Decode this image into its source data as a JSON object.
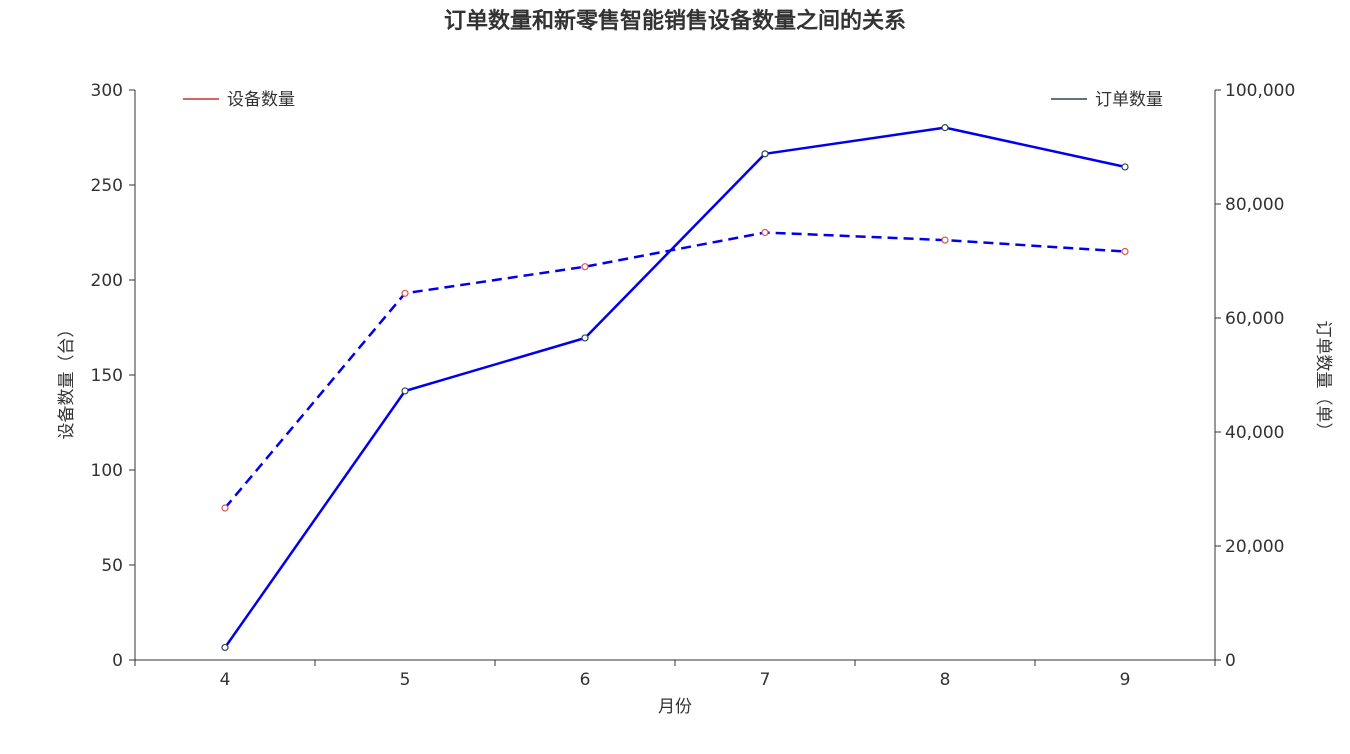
{
  "chart_data": {
    "type": "line",
    "title": "订单数量和新零售智能销售设备数量之间的关系",
    "xlabel": "月份",
    "categories": [
      "4",
      "5",
      "6",
      "7",
      "8",
      "9"
    ],
    "y_left": {
      "label": "设备数量（台）",
      "range": [
        0,
        300
      ],
      "ticks": [
        0,
        50,
        100,
        150,
        200,
        250,
        300
      ],
      "tick_labels": [
        "0",
        "50",
        "100",
        "150",
        "200",
        "250",
        "300"
      ]
    },
    "y_right": {
      "label": "订单数量（单）",
      "range": [
        0,
        100000
      ],
      "ticks": [
        0,
        20000,
        40000,
        60000,
        80000,
        100000
      ],
      "tick_labels": [
        "0",
        "20,000",
        "40,000",
        "60,000",
        "80,000",
        "100,000"
      ]
    },
    "series": [
      {
        "name": "设备数量",
        "axis": "left",
        "line_style": "dashed",
        "line_color": "#0000ee",
        "marker_color": "#d9534f",
        "legend_color": "#c23531",
        "values": [
          80,
          193,
          207,
          225,
          221,
          215
        ]
      },
      {
        "name": "订单数量",
        "axis": "right",
        "line_style": "solid",
        "line_color": "#0000ee",
        "marker_color": "#2f4554",
        "legend_color": "#2f4554",
        "values": [
          2200,
          47200,
          56500,
          88800,
          93400,
          86500
        ]
      }
    ],
    "legend": {
      "left_entry": "设备数量",
      "right_entry": "订单数量",
      "placement": "top"
    },
    "grid": false
  }
}
